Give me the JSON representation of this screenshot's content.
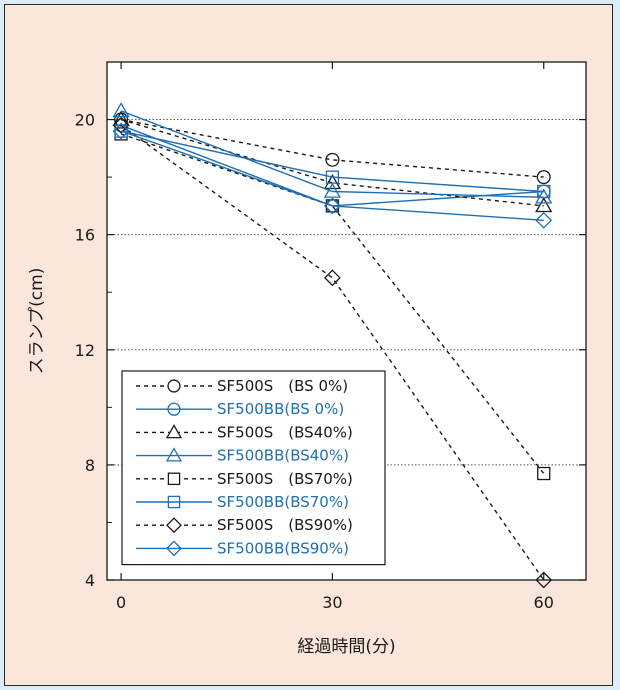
{
  "chart_data": {
    "type": "line",
    "title": "",
    "xlabel": "経過時間(分)",
    "ylabel": "スランプ(cm)",
    "x": [
      0,
      30,
      60
    ],
    "xticks": [
      "0",
      "30",
      "60"
    ],
    "yticks": [
      "4",
      "8",
      "12",
      "16",
      "20"
    ],
    "xlim": [
      -2,
      66
    ],
    "ylim": [
      4,
      22
    ],
    "grid": "horizontal dotted at 8, 12, 16, 20",
    "legend_position": "bottom-left",
    "colors": {
      "SF500S": "#1a1a1a",
      "SF500BB": "#1f6fb4",
      "background": "#fbe6dc",
      "plot_background": "#ffffff"
    },
    "series": [
      {
        "name": "SF500S　(BS 0%)",
        "group": "SF500S",
        "marker": "circle",
        "values": [
          20.0,
          18.6,
          18.0
        ]
      },
      {
        "name": "SF500BB(BS 0%)",
        "group": "SF500BB",
        "marker": "circle",
        "values": [
          19.8,
          17.0,
          17.5
        ]
      },
      {
        "name": "SF500S　(BS40%)",
        "group": "SF500S",
        "marker": "triangle",
        "values": [
          20.0,
          17.8,
          17.0
        ]
      },
      {
        "name": "SF500BB(BS40%)",
        "group": "SF500BB",
        "marker": "triangle",
        "values": [
          20.3,
          17.5,
          17.3
        ]
      },
      {
        "name": "SF500S　(BS70%)",
        "group": "SF500S",
        "marker": "square",
        "values": [
          19.5,
          17.0,
          7.7
        ]
      },
      {
        "name": "SF500BB(BS70%)",
        "group": "SF500BB",
        "marker": "square",
        "values": [
          19.6,
          18.0,
          17.5
        ]
      },
      {
        "name": "SF500S　(BS90%)",
        "group": "SF500S",
        "marker": "diamond",
        "values": [
          19.8,
          14.5,
          4.0
        ]
      },
      {
        "name": "SF500BB(BS90%)",
        "group": "SF500BB",
        "marker": "diamond",
        "values": [
          19.6,
          17.0,
          16.5
        ]
      }
    ]
  }
}
